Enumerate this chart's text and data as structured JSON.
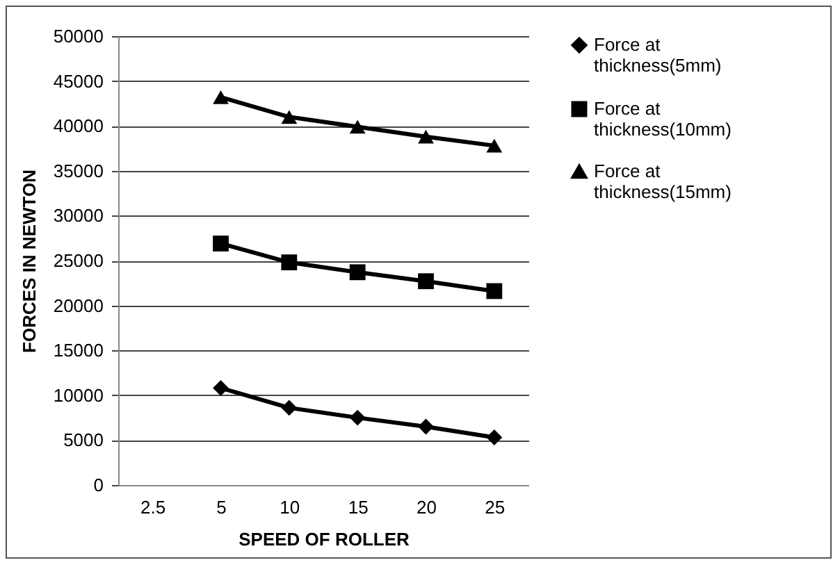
{
  "chart_data": {
    "type": "line",
    "xlabel": "SPEED OF ROLLER",
    "ylabel": "FORCES IN NEWTON",
    "categories": [
      "2.5",
      "5",
      "10",
      "15",
      "20",
      "25"
    ],
    "series": [
      {
        "name": "Force at thickness(5mm)",
        "color": "#000000",
        "marker": "diamond",
        "values": [
          null,
          10800,
          8600,
          7500,
          6500,
          5300
        ]
      },
      {
        "name": "Force at thickness(10mm)",
        "color": "#000000",
        "marker": "square",
        "values": [
          null,
          26900,
          24800,
          23700,
          22700,
          21600
        ]
      },
      {
        "name": "Force at thickness(15mm)",
        "color": "#000000",
        "marker": "triangle",
        "values": [
          null,
          43200,
          41000,
          39900,
          38800,
          37800
        ]
      }
    ],
    "ylim": [
      0,
      50000
    ],
    "yticks": [
      0,
      5000,
      10000,
      15000,
      20000,
      25000,
      30000,
      35000,
      40000,
      45000,
      50000
    ],
    "grid": "y",
    "legend": "right",
    "line_style": "solid"
  }
}
